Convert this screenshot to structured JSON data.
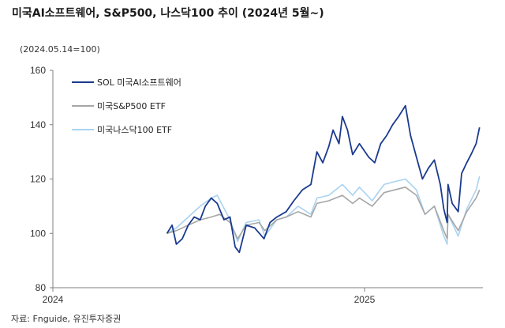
{
  "title": "미국AI소프트웨어, S&P500, 나스닥100 추이 (2024년 5월~)",
  "subtitle": "(2024.05.14=100)",
  "source": "자료: Fnguide, 유진투자증권",
  "colors": {
    "sol": "#1a3a8f",
    "sp500": "#a6a6a6",
    "nasdaq": "#a9d3f0",
    "axis": "#7f7f7f"
  },
  "chart_data": {
    "type": "line",
    "title": "미국AI소프트웨어, S&P500, 나스닥100 추이 (2024년 5월~)",
    "subtitle": "(2024.05.14=100)",
    "xlabel": "",
    "ylabel": "",
    "ylim": [
      80,
      160
    ],
    "yticks": [
      80,
      100,
      120,
      140,
      160
    ],
    "xlim": [
      "2024-01-01",
      "2025-05-20"
    ],
    "xticks": [
      {
        "date": "2024-01-01",
        "label": "2024"
      },
      {
        "date": "2025-01-01",
        "label": "2025"
      }
    ],
    "grid": false,
    "legend": "top-left",
    "series": [
      {
        "name": "SOL 미국AI소프트웨어",
        "color": "#1a3a8f",
        "points": [
          [
            "2024-05-14",
            100
          ],
          [
            "2024-05-20",
            103
          ],
          [
            "2024-05-25",
            96
          ],
          [
            "2024-06-01",
            98
          ],
          [
            "2024-06-08",
            103
          ],
          [
            "2024-06-15",
            106
          ],
          [
            "2024-06-22",
            105
          ],
          [
            "2024-06-28",
            110
          ],
          [
            "2024-07-05",
            113
          ],
          [
            "2024-07-12",
            111
          ],
          [
            "2024-07-20",
            105
          ],
          [
            "2024-07-27",
            106
          ],
          [
            "2024-08-02",
            95
          ],
          [
            "2024-08-07",
            93
          ],
          [
            "2024-08-15",
            103
          ],
          [
            "2024-08-25",
            102
          ],
          [
            "2024-09-05",
            98
          ],
          [
            "2024-09-12",
            104
          ],
          [
            "2024-09-20",
            106
          ],
          [
            "2024-10-01",
            108
          ],
          [
            "2024-10-10",
            112
          ],
          [
            "2024-10-20",
            116
          ],
          [
            "2024-10-30",
            118
          ],
          [
            "2024-11-06",
            130
          ],
          [
            "2024-11-13",
            126
          ],
          [
            "2024-11-20",
            132
          ],
          [
            "2024-11-25",
            138
          ],
          [
            "2024-12-02",
            133
          ],
          [
            "2024-12-06",
            143
          ],
          [
            "2024-12-12",
            138
          ],
          [
            "2024-12-18",
            129
          ],
          [
            "2024-12-26",
            133
          ],
          [
            "2025-01-06",
            128
          ],
          [
            "2025-01-13",
            126
          ],
          [
            "2025-01-20",
            133
          ],
          [
            "2025-01-27",
            136
          ],
          [
            "2025-02-03",
            140
          ],
          [
            "2025-02-10",
            143
          ],
          [
            "2025-02-18",
            147
          ],
          [
            "2025-02-24",
            136
          ],
          [
            "2025-03-03",
            128
          ],
          [
            "2025-03-10",
            120
          ],
          [
            "2025-03-17",
            124
          ],
          [
            "2025-03-24",
            127
          ],
          [
            "2025-03-31",
            118
          ],
          [
            "2025-04-04",
            109
          ],
          [
            "2025-04-08",
            104
          ],
          [
            "2025-04-09",
            118
          ],
          [
            "2025-04-14",
            111
          ],
          [
            "2025-04-21",
            108
          ],
          [
            "2025-04-25",
            122
          ],
          [
            "2025-05-01",
            126
          ],
          [
            "2025-05-06",
            129
          ],
          [
            "2025-05-12",
            133
          ],
          [
            "2025-05-16",
            139
          ]
        ]
      },
      {
        "name": "미국S&P500 ETF",
        "color": "#a6a6a6",
        "points": [
          [
            "2024-05-14",
            100
          ],
          [
            "2024-05-25",
            101
          ],
          [
            "2024-06-08",
            103
          ],
          [
            "2024-06-22",
            105
          ],
          [
            "2024-07-05",
            106
          ],
          [
            "2024-07-15",
            107
          ],
          [
            "2024-07-27",
            104
          ],
          [
            "2024-08-05",
            98
          ],
          [
            "2024-08-15",
            103
          ],
          [
            "2024-08-30",
            104
          ],
          [
            "2024-09-06",
            101
          ],
          [
            "2024-09-20",
            105
          ],
          [
            "2024-10-01",
            106
          ],
          [
            "2024-10-15",
            108
          ],
          [
            "2024-10-30",
            106
          ],
          [
            "2024-11-06",
            111
          ],
          [
            "2024-11-20",
            112
          ],
          [
            "2024-12-06",
            114
          ],
          [
            "2024-12-18",
            111
          ],
          [
            "2024-12-26",
            113
          ],
          [
            "2025-01-10",
            110
          ],
          [
            "2025-01-24",
            115
          ],
          [
            "2025-02-05",
            116
          ],
          [
            "2025-02-18",
            117
          ],
          [
            "2025-03-03",
            114
          ],
          [
            "2025-03-13",
            107
          ],
          [
            "2025-03-24",
            110
          ],
          [
            "2025-04-04",
            101
          ],
          [
            "2025-04-08",
            98
          ],
          [
            "2025-04-09",
            107
          ],
          [
            "2025-04-21",
            101
          ],
          [
            "2025-05-01",
            108
          ],
          [
            "2025-05-12",
            113
          ],
          [
            "2025-05-16",
            116
          ]
        ]
      },
      {
        "name": "미국나스닥100 ETF",
        "color": "#a9d3f0",
        "points": [
          [
            "2024-05-14",
            100
          ],
          [
            "2024-05-25",
            102
          ],
          [
            "2024-06-08",
            106
          ],
          [
            "2024-06-22",
            110
          ],
          [
            "2024-07-05",
            113
          ],
          [
            "2024-07-12",
            114
          ],
          [
            "2024-07-27",
            105
          ],
          [
            "2024-08-05",
            97
          ],
          [
            "2024-08-15",
            104
          ],
          [
            "2024-08-30",
            105
          ],
          [
            "2024-09-06",
            99
          ],
          [
            "2024-09-20",
            105
          ],
          [
            "2024-10-01",
            106
          ],
          [
            "2024-10-15",
            110
          ],
          [
            "2024-10-30",
            107
          ],
          [
            "2024-11-06",
            113
          ],
          [
            "2024-11-20",
            114
          ],
          [
            "2024-12-06",
            118
          ],
          [
            "2024-12-18",
            114
          ],
          [
            "2024-12-26",
            117
          ],
          [
            "2025-01-10",
            112
          ],
          [
            "2025-01-24",
            118
          ],
          [
            "2025-02-05",
            119
          ],
          [
            "2025-02-18",
            120
          ],
          [
            "2025-03-03",
            116
          ],
          [
            "2025-03-13",
            107
          ],
          [
            "2025-03-24",
            110
          ],
          [
            "2025-04-04",
            99
          ],
          [
            "2025-04-08",
            96
          ],
          [
            "2025-04-09",
            107
          ],
          [
            "2025-04-21",
            99
          ],
          [
            "2025-05-01",
            109
          ],
          [
            "2025-05-12",
            116
          ],
          [
            "2025-05-16",
            121
          ]
        ]
      }
    ]
  }
}
